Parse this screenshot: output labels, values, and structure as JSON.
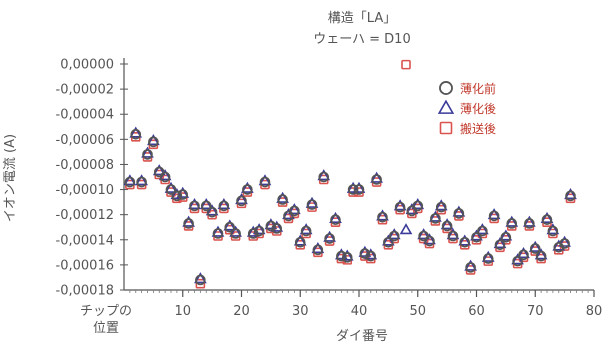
{
  "chart_data": {
    "type": "scatter",
    "title": "構造「LA」",
    "subtitle": "ウェーハ = D10",
    "xlabel": "ダイ番号",
    "ylabel": "イオン電流 (A)",
    "x_first_tick_label": [
      "チップの",
      "位置"
    ],
    "xlim": [
      0,
      80
    ],
    "ylim": [
      -0.00018,
      0.0
    ],
    "x_ticks": [
      10,
      20,
      30,
      40,
      50,
      60,
      70,
      80
    ],
    "y_ticks": [
      0.0,
      -2e-05,
      -4e-05,
      -6e-05,
      -8e-05,
      -0.0001,
      -0.00012,
      -0.00014,
      -0.00016,
      -0.00018
    ],
    "y_tick_labels": [
      "0,00000",
      "-0,00002",
      "-0,00004",
      "-0,00006",
      "-0,00008",
      "-0,00010",
      "-0,00012",
      "-0,00014",
      "-0,00016",
      "-0,00018"
    ],
    "legend_position": "top-right",
    "series": [
      {
        "name": "薄化前",
        "marker": "circle",
        "color": "#555555",
        "x": [
          1,
          2,
          3,
          4,
          5,
          6,
          7,
          8,
          9,
          10,
          11,
          12,
          13,
          14,
          15,
          16,
          17,
          18,
          19,
          20,
          21,
          22,
          23,
          24,
          25,
          26,
          27,
          28,
          29,
          30,
          31,
          32,
          33,
          34,
          35,
          36,
          37,
          38,
          39,
          40,
          41,
          42,
          43,
          44,
          45,
          46,
          47,
          49,
          50,
          51,
          52,
          53,
          54,
          55,
          56,
          57,
          58,
          59,
          60,
          61,
          62,
          63,
          64,
          65,
          66,
          67,
          68,
          69,
          70,
          71,
          72,
          73,
          74,
          75,
          76
        ],
        "y": [
          -9.4e-05,
          -5.6e-05,
          -9.4e-05,
          -7.2e-05,
          -6.2e-05,
          -8.6e-05,
          -9e-05,
          -0.0001,
          -0.000105,
          -0.000104,
          -0.000127,
          -0.000113,
          -0.000172,
          -0.000113,
          -0.000118,
          -0.000135,
          -0.000113,
          -0.00013,
          -0.000135,
          -0.000109,
          -0.0001,
          -0.000135,
          -0.000133,
          -9.4e-05,
          -0.000129,
          -0.000131,
          -0.000108,
          -0.000121,
          -0.000117,
          -0.000142,
          -0.000133,
          -0.000112,
          -0.000148,
          -9e-05,
          -0.000139,
          -0.000124,
          -0.000153,
          -0.000154,
          -0.0001,
          -0.0001,
          -0.000151,
          -0.000153,
          -9.2e-05,
          -0.000122,
          -0.000142,
          -0.000137,
          -0.000114,
          -0.000117,
          -0.000113,
          -0.000137,
          -0.000141,
          -0.000123,
          -0.000114,
          -0.000129,
          -0.000137,
          -0.000119,
          -0.000142,
          -0.000162,
          -0.000138,
          -0.000133,
          -0.000155,
          -0.000121,
          -0.000144,
          -0.000138,
          -0.000127,
          -0.000157,
          -0.000152,
          -0.000127,
          -0.000147,
          -0.000153,
          -0.000124,
          -0.000133,
          -0.000146,
          -0.000143,
          -0.000105
        ]
      },
      {
        "name": "薄化後",
        "marker": "triangle",
        "color": "#3b3b9a",
        "x": [
          1,
          2,
          3,
          4,
          5,
          6,
          7,
          8,
          9,
          10,
          11,
          12,
          13,
          14,
          15,
          16,
          17,
          18,
          19,
          20,
          21,
          22,
          23,
          24,
          25,
          26,
          27,
          28,
          29,
          30,
          31,
          32,
          33,
          34,
          35,
          36,
          37,
          38,
          39,
          40,
          41,
          42,
          43,
          44,
          45,
          46,
          47,
          48,
          49,
          50,
          51,
          52,
          53,
          54,
          55,
          56,
          57,
          58,
          59,
          60,
          61,
          62,
          63,
          64,
          65,
          66,
          67,
          68,
          69,
          70,
          71,
          72,
          73,
          74,
          75,
          76
        ],
        "y": [
          -9.3e-05,
          -5.5e-05,
          -9.3e-05,
          -7.1e-05,
          -6.1e-05,
          -8.5e-05,
          -8.9e-05,
          -9.9e-05,
          -0.000104,
          -0.000103,
          -0.000126,
          -0.000112,
          -0.000171,
          -0.000112,
          -0.000117,
          -0.000134,
          -0.000112,
          -0.000129,
          -0.000134,
          -0.000108,
          -9.9e-05,
          -0.000134,
          -0.000132,
          -9.3e-05,
          -0.000128,
          -0.00013,
          -0.000107,
          -0.00012,
          -0.000116,
          -0.000141,
          -0.000132,
          -0.000111,
          -0.000147,
          -8.9e-05,
          -0.000138,
          -0.000123,
          -0.000152,
          -0.000153,
          -9.9e-05,
          -9.9e-05,
          -0.00015,
          -0.000152,
          -9.1e-05,
          -0.000121,
          -0.000141,
          -0.000136,
          -0.000113,
          -0.000132,
          -0.000116,
          -0.000112,
          -0.000136,
          -0.00014,
          -0.000122,
          -0.000113,
          -0.000128,
          -0.000136,
          -0.000118,
          -0.000141,
          -0.000161,
          -0.000137,
          -0.000132,
          -0.000154,
          -0.00012,
          -0.000143,
          -0.000137,
          -0.000126,
          -0.000156,
          -0.000151,
          -0.000126,
          -0.000146,
          -0.000152,
          -0.000123,
          -0.000132,
          -0.000145,
          -0.000142,
          -0.000104
        ]
      },
      {
        "name": "搬送後",
        "marker": "square",
        "color": "#d9534f",
        "x": [
          1,
          2,
          3,
          4,
          5,
          6,
          7,
          8,
          9,
          10,
          11,
          12,
          13,
          14,
          15,
          16,
          17,
          18,
          19,
          20,
          21,
          22,
          23,
          24,
          25,
          26,
          27,
          28,
          29,
          30,
          31,
          32,
          33,
          34,
          35,
          36,
          37,
          38,
          39,
          40,
          41,
          42,
          43,
          44,
          45,
          46,
          47,
          48,
          49,
          50,
          51,
          52,
          53,
          54,
          55,
          56,
          57,
          58,
          59,
          60,
          61,
          62,
          63,
          64,
          65,
          66,
          67,
          68,
          69,
          70,
          71,
          72,
          73,
          74,
          75,
          76
        ],
        "y": [
          -9.6e-05,
          -5.8e-05,
          -9.6e-05,
          -7.4e-05,
          -6.4e-05,
          -8.8e-05,
          -9.2e-05,
          -0.000102,
          -0.000107,
          -0.000106,
          -0.000129,
          -0.000115,
          -0.000175,
          -0.000115,
          -0.00012,
          -0.000137,
          -0.000115,
          -0.000132,
          -0.000137,
          -0.000111,
          -0.000102,
          -0.000137,
          -0.000135,
          -9.6e-05,
          -0.000131,
          -0.000133,
          -0.00011,
          -0.000123,
          -0.000119,
          -0.000144,
          -0.000135,
          -0.000114,
          -0.00015,
          -9.2e-05,
          -0.000141,
          -0.000126,
          -0.000155,
          -0.000156,
          -0.000102,
          -0.000102,
          -0.000153,
          -0.000155,
          -9.4e-05,
          -0.000124,
          -0.000144,
          -0.000139,
          -0.000116,
          -5e-07,
          -0.000119,
          -0.000115,
          -0.000139,
          -0.000143,
          -0.000125,
          -0.000116,
          -0.000131,
          -0.000139,
          -0.000121,
          -0.000144,
          -0.000164,
          -0.00014,
          -0.000135,
          -0.000157,
          -0.000123,
          -0.000146,
          -0.00014,
          -0.000129,
          -0.000159,
          -0.000154,
          -0.000129,
          -0.000149,
          -0.000155,
          -0.000126,
          -0.000135,
          -0.000148,
          -0.000145,
          -0.000107
        ]
      }
    ]
  }
}
